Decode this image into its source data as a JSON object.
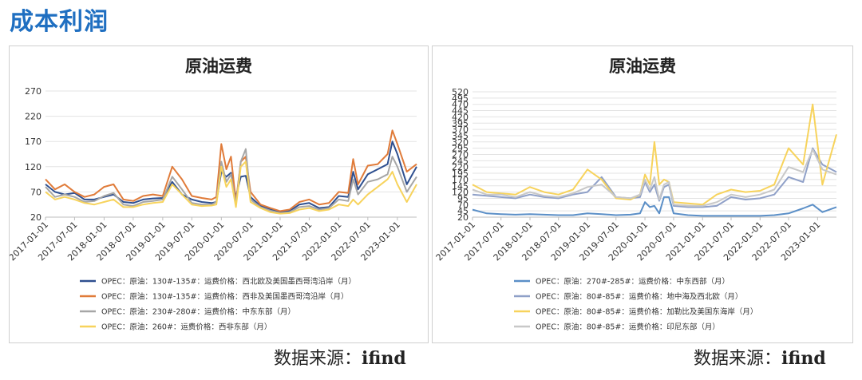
{
  "header": {
    "title": "成本利润"
  },
  "sources": [
    {
      "prefix": "数据来源：",
      "name": "ifind"
    },
    {
      "prefix": "数据来源：",
      "name": "ifind"
    }
  ],
  "chart_data": [
    {
      "type": "line",
      "title": "原油运费",
      "ylim": [
        20,
        270
      ],
      "yticks": [
        20,
        70,
        120,
        170,
        220,
        270
      ],
      "xticks": [
        "2017-01-01",
        "2017-07-01",
        "2018-01-01",
        "2018-07-01",
        "2019-01-01",
        "2019-07-01",
        "2020-01-01",
        "2020-07-01",
        "2021-01-01",
        "2021-07-01",
        "2022-01-01",
        "2022-07-01",
        "2023-01-01"
      ],
      "x_range": [
        "2017-01-01",
        "2023-05-01"
      ],
      "grid": true,
      "legend_position": "bottom",
      "series": [
        {
          "name": "OPEC：原油：130#-135#：运费价格：西北欧及美国墨西哥湾沿岸（月）",
          "color": "#2e4f8f",
          "x": [
            "2017-01-01",
            "2017-03-01",
            "2017-05-01",
            "2017-07-01",
            "2017-09-01",
            "2017-11-01",
            "2018-01-01",
            "2018-03-01",
            "2018-05-01",
            "2018-07-01",
            "2018-09-01",
            "2018-11-01",
            "2019-01-01",
            "2019-03-01",
            "2019-05-01",
            "2019-07-01",
            "2019-09-01",
            "2019-11-01",
            "2019-12-01",
            "2020-01-01",
            "2020-02-01",
            "2020-03-01",
            "2020-04-01",
            "2020-05-01",
            "2020-06-01",
            "2020-07-01",
            "2020-09-01",
            "2020-11-01",
            "2021-01-01",
            "2021-03-01",
            "2021-05-01",
            "2021-07-01",
            "2021-09-01",
            "2021-11-01",
            "2022-01-01",
            "2022-03-01",
            "2022-04-01",
            "2022-05-01",
            "2022-07-01",
            "2022-09-01",
            "2022-11-01",
            "2022-12-01",
            "2023-01-01",
            "2023-03-01",
            "2023-05-01"
          ],
          "y": [
            85,
            70,
            65,
            68,
            55,
            55,
            60,
            65,
            50,
            48,
            55,
            57,
            58,
            90,
            65,
            55,
            50,
            48,
            50,
            110,
            100,
            108,
            60,
            100,
            102,
            60,
            42,
            35,
            30,
            32,
            45,
            48,
            38,
            40,
            62,
            60,
            110,
            75,
            105,
            115,
            125,
            170,
            145,
            85,
            120
          ]
        },
        {
          "name": "OPEC：原油：130#-135#：运费价格：西非及美国墨西哥湾沿岸（月）",
          "color": "#e07b39",
          "x": [
            "2017-01-01",
            "2017-03-01",
            "2017-05-01",
            "2017-07-01",
            "2017-09-01",
            "2017-11-01",
            "2018-01-01",
            "2018-03-01",
            "2018-05-01",
            "2018-07-01",
            "2018-09-01",
            "2018-11-01",
            "2019-01-01",
            "2019-03-01",
            "2019-05-01",
            "2019-07-01",
            "2019-09-01",
            "2019-11-01",
            "2019-12-01",
            "2020-01-01",
            "2020-02-01",
            "2020-03-01",
            "2020-04-01",
            "2020-05-01",
            "2020-06-01",
            "2020-07-01",
            "2020-09-01",
            "2020-11-01",
            "2021-01-01",
            "2021-03-01",
            "2021-05-01",
            "2021-07-01",
            "2021-09-01",
            "2021-11-01",
            "2022-01-01",
            "2022-03-01",
            "2022-04-01",
            "2022-05-01",
            "2022-07-01",
            "2022-09-01",
            "2022-11-01",
            "2022-12-01",
            "2023-01-01",
            "2023-03-01",
            "2023-05-01"
          ],
          "y": [
            95,
            75,
            85,
            70,
            60,
            65,
            80,
            85,
            55,
            52,
            62,
            65,
            62,
            120,
            95,
            62,
            58,
            55,
            60,
            165,
            115,
            140,
            50,
            130,
            140,
            70,
            45,
            38,
            32,
            35,
            50,
            55,
            45,
            48,
            70,
            68,
            135,
            85,
            122,
            125,
            145,
            192,
            165,
            110,
            125
          ]
        },
        {
          "name": "OPEC：原油：230#-280#：运费价格：中东东部（月）",
          "color": "#a6a6a6",
          "x": [
            "2017-01-01",
            "2017-03-01",
            "2017-05-01",
            "2017-07-01",
            "2017-09-01",
            "2017-11-01",
            "2018-01-01",
            "2018-03-01",
            "2018-05-01",
            "2018-07-01",
            "2018-09-01",
            "2018-11-01",
            "2019-01-01",
            "2019-03-01",
            "2019-05-01",
            "2019-07-01",
            "2019-09-01",
            "2019-11-01",
            "2019-12-01",
            "2020-01-01",
            "2020-02-01",
            "2020-03-01",
            "2020-04-01",
            "2020-05-01",
            "2020-06-01",
            "2020-07-01",
            "2020-09-01",
            "2020-11-01",
            "2021-01-01",
            "2021-03-01",
            "2021-05-01",
            "2021-07-01",
            "2021-09-01",
            "2021-11-01",
            "2022-01-01",
            "2022-03-01",
            "2022-04-01",
            "2022-05-01",
            "2022-07-01",
            "2022-09-01",
            "2022-11-01",
            "2022-12-01",
            "2023-01-01",
            "2023-03-01",
            "2023-05-01"
          ],
          "y": [
            80,
            60,
            65,
            60,
            50,
            52,
            62,
            68,
            45,
            42,
            50,
            52,
            55,
            100,
            75,
            48,
            45,
            45,
            50,
            130,
            90,
            105,
            45,
            130,
            155,
            55,
            40,
            33,
            28,
            30,
            40,
            42,
            35,
            38,
            55,
            52,
            95,
            65,
            90,
            95,
            105,
            140,
            120,
            70,
            100
          ]
        },
        {
          "name": "OPEC：原油：260#：运费价格：西非东部（月）",
          "color": "#f7d35c",
          "x": [
            "2017-01-01",
            "2017-03-01",
            "2017-05-01",
            "2017-07-01",
            "2017-09-01",
            "2017-11-01",
            "2018-01-01",
            "2018-03-01",
            "2018-05-01",
            "2018-07-01",
            "2018-09-01",
            "2018-11-01",
            "2019-01-01",
            "2019-03-01",
            "2019-05-01",
            "2019-07-01",
            "2019-09-01",
            "2019-11-01",
            "2019-12-01",
            "2020-01-01",
            "2020-02-01",
            "2020-03-01",
            "2020-04-01",
            "2020-05-01",
            "2020-06-01",
            "2020-07-01",
            "2020-09-01",
            "2020-11-01",
            "2021-01-01",
            "2021-03-01",
            "2021-05-01",
            "2021-07-01",
            "2021-09-01",
            "2021-11-01",
            "2022-01-01",
            "2022-03-01",
            "2022-04-01",
            "2022-05-01",
            "2022-07-01",
            "2022-09-01",
            "2022-11-01",
            "2022-12-01",
            "2023-01-01",
            "2023-03-01",
            "2023-05-01"
          ],
          "y": [
            70,
            55,
            60,
            55,
            48,
            45,
            50,
            55,
            40,
            40,
            45,
            48,
            50,
            85,
            65,
            45,
            42,
            43,
            45,
            120,
            80,
            95,
            40,
            120,
            130,
            50,
            38,
            30,
            27,
            28,
            35,
            38,
            32,
            35,
            45,
            42,
            55,
            45,
            65,
            80,
            95,
            110,
            85,
            50,
            85
          ]
        }
      ]
    },
    {
      "type": "line",
      "title": "原油运费",
      "ylim": [
        20,
        520
      ],
      "yticks": [
        20,
        70,
        120,
        170,
        220,
        270,
        320,
        370,
        420,
        470,
        520
      ],
      "extra_yticks": [
        45,
        95,
        145,
        195,
        245,
        295,
        345,
        395,
        445,
        495
      ],
      "xticks": [
        "2017-01-01",
        "2017-07-01",
        "2018-01-01",
        "2018-07-01",
        "2019-01-01",
        "2019-07-01",
        "2020-01-01",
        "2020-07-01",
        "2021-01-01",
        "2021-07-01",
        "2022-01-01",
        "2022-07-01",
        "2023-01-01"
      ],
      "x_range": [
        "2017-01-01",
        "2023-05-01"
      ],
      "grid": true,
      "legend_position": "bottom",
      "series": [
        {
          "name": "OPEC：原油：270#-285#：运费价格：中东西部（月）",
          "color": "#5b8fc7",
          "x": [
            "2017-01-01",
            "2017-04-01",
            "2017-07-01",
            "2017-10-01",
            "2018-01-01",
            "2018-04-01",
            "2018-07-01",
            "2018-10-01",
            "2019-01-01",
            "2019-04-01",
            "2019-07-01",
            "2019-10-01",
            "2019-12-01",
            "2020-01-01",
            "2020-02-01",
            "2020-03-01",
            "2020-04-01",
            "2020-05-01",
            "2020-06-01",
            "2020-07-01",
            "2020-10-01",
            "2021-01-01",
            "2021-04-01",
            "2021-07-01",
            "2021-10-01",
            "2022-01-01",
            "2022-04-01",
            "2022-07-01",
            "2022-10-01",
            "2022-12-01",
            "2023-02-01",
            "2023-05-01"
          ],
          "y": [
            50,
            35,
            32,
            30,
            32,
            30,
            28,
            28,
            35,
            32,
            28,
            30,
            35,
            80,
            60,
            65,
            35,
            100,
            100,
            35,
            28,
            25,
            25,
            25,
            25,
            25,
            28,
            35,
            55,
            70,
            40,
            60
          ]
        },
        {
          "name": "OPEC：原油：80#-85#：运费价格：地中海及西北欧（月）",
          "color": "#8fa0c8",
          "x": [
            "2017-01-01",
            "2017-04-01",
            "2017-07-01",
            "2017-10-01",
            "2018-01-01",
            "2018-04-01",
            "2018-07-01",
            "2018-10-01",
            "2019-01-01",
            "2019-04-01",
            "2019-07-01",
            "2019-10-01",
            "2019-12-01",
            "2020-01-01",
            "2020-02-01",
            "2020-03-01",
            "2020-04-01",
            "2020-05-01",
            "2020-06-01",
            "2020-07-01",
            "2020-10-01",
            "2021-01-01",
            "2021-04-01",
            "2021-07-01",
            "2021-10-01",
            "2022-01-01",
            "2022-04-01",
            "2022-07-01",
            "2022-10-01",
            "2022-12-01",
            "2023-02-01",
            "2023-05-01"
          ],
          "y": [
            110,
            105,
            100,
            95,
            110,
            100,
            95,
            110,
            120,
            180,
            100,
            95,
            100,
            160,
            120,
            150,
            85,
            140,
            150,
            65,
            60,
            60,
            65,
            100,
            90,
            95,
            110,
            180,
            160,
            295,
            230,
            200
          ]
        },
        {
          "name": "OPEC：原油：80#-85#：运费价格：加勒比及美国东海岸（月）",
          "color": "#f7d35c",
          "x": [
            "2017-01-01",
            "2017-04-01",
            "2017-07-01",
            "2017-10-01",
            "2018-01-01",
            "2018-04-01",
            "2018-07-01",
            "2018-10-01",
            "2019-01-01",
            "2019-04-01",
            "2019-07-01",
            "2019-10-01",
            "2019-12-01",
            "2020-01-01",
            "2020-02-01",
            "2020-03-01",
            "2020-04-01",
            "2020-05-01",
            "2020-06-01",
            "2020-07-01",
            "2020-10-01",
            "2021-01-01",
            "2021-04-01",
            "2021-07-01",
            "2021-10-01",
            "2022-01-01",
            "2022-04-01",
            "2022-07-01",
            "2022-10-01",
            "2022-12-01",
            "2023-02-01",
            "2023-05-01"
          ],
          "y": [
            150,
            120,
            115,
            110,
            140,
            120,
            110,
            130,
            210,
            170,
            95,
            90,
            110,
            190,
            150,
            320,
            150,
            170,
            160,
            80,
            75,
            70,
            110,
            130,
            120,
            125,
            150,
            295,
            230,
            470,
            150,
            350
          ]
        },
        {
          "name": "OPEC：原油：80#-85#：运费价格：印尼东部（月）",
          "color": "#c8c8c8",
          "x": [
            "2017-01-01",
            "2017-04-01",
            "2017-07-01",
            "2017-10-01",
            "2018-01-01",
            "2018-04-01",
            "2018-07-01",
            "2018-10-01",
            "2019-01-01",
            "2019-04-01",
            "2019-07-01",
            "2019-10-01",
            "2019-12-01",
            "2020-01-01",
            "2020-02-01",
            "2020-03-01",
            "2020-04-01",
            "2020-05-01",
            "2020-06-01",
            "2020-07-01",
            "2020-10-01",
            "2021-01-01",
            "2021-04-01",
            "2021-07-01",
            "2021-10-01",
            "2022-01-01",
            "2022-04-01",
            "2022-07-01",
            "2022-10-01",
            "2022-12-01",
            "2023-02-01",
            "2023-05-01"
          ],
          "y": [
            130,
            110,
            110,
            100,
            120,
            105,
            100,
            115,
            140,
            150,
            100,
            95,
            110,
            170,
            130,
            180,
            90,
            150,
            160,
            70,
            65,
            65,
            80,
            110,
            100,
            110,
            130,
            220,
            200,
            290,
            210,
            190
          ]
        }
      ]
    }
  ]
}
